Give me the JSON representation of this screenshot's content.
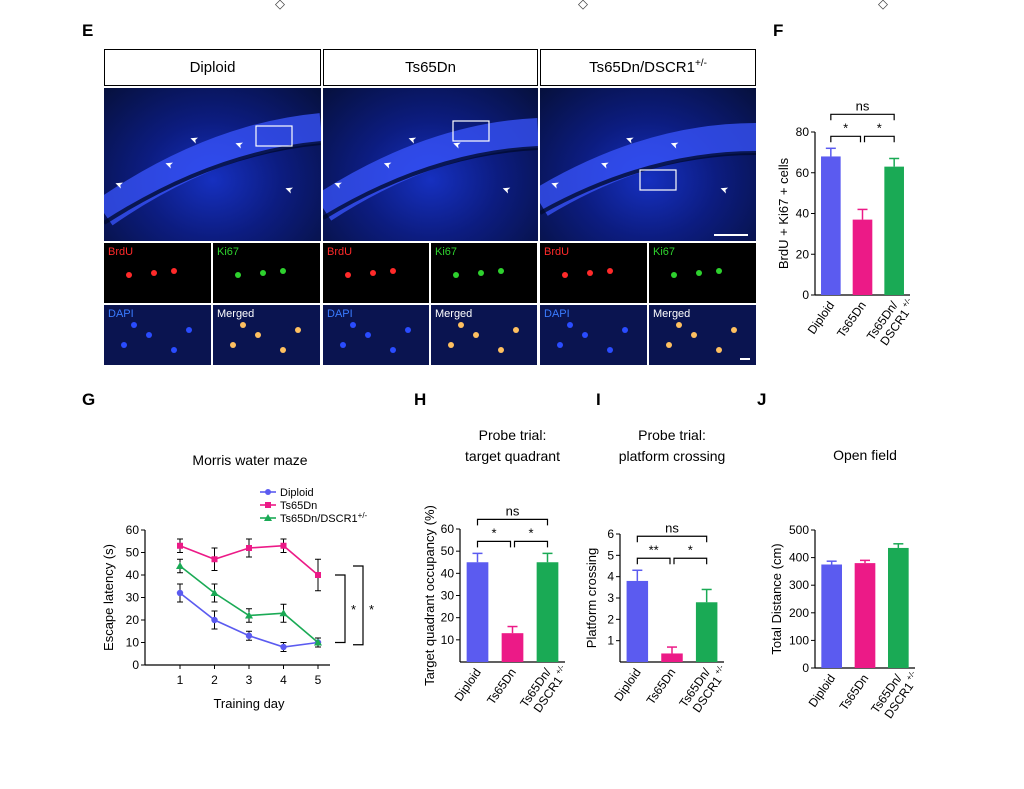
{
  "colors": {
    "diploid": "#5b5bf0",
    "ts65dn": "#ec1a87",
    "rescue": "#1aaa55",
    "brdu": "#ff2a2a",
    "ki67": "#2ed12e",
    "dapi": "#3a7bff",
    "merged": "#ffffff"
  },
  "panel_E": {
    "letter": "E",
    "headers": [
      "Diploid",
      "Ts65Dn",
      "Ts65Dn/DSCR1"
    ],
    "header_superscript": "+/-",
    "sub_labels": {
      "brdu": "BrdU",
      "ki67": "Ki67",
      "dapi": "DAPI",
      "merged": "Merged"
    }
  },
  "panel_F": {
    "letter": "F"
  },
  "panel_G": {
    "letter": "G"
  },
  "panel_H": {
    "letter": "H"
  },
  "panel_I": {
    "letter": "I"
  },
  "panel_J": {
    "letter": "J"
  },
  "chart_data": [
    {
      "id": "F",
      "type": "bar",
      "ylabel": "BrdU + Ki67 + cells",
      "ylim": [
        0,
        80
      ],
      "yticks": [
        0,
        20,
        40,
        60,
        80
      ],
      "categories": [
        "Diploid",
        "Ts65Dn",
        "Ts65Dn/\nDSCR1 +/-"
      ],
      "values": [
        68,
        37,
        63
      ],
      "errors": [
        4,
        5,
        4
      ],
      "significance": [
        "*",
        "*",
        "ns"
      ]
    },
    {
      "id": "G",
      "type": "line",
      "title": "Morris water maze",
      "xlabel": "Training day",
      "ylabel": "Escape latency (s)",
      "x": [
        1,
        2,
        3,
        4,
        5
      ],
      "ylim": [
        0,
        60
      ],
      "yticks": [
        0,
        10,
        20,
        30,
        40,
        50,
        60
      ],
      "series": [
        {
          "name": "Diploid",
          "values": [
            32,
            20,
            13,
            8,
            10
          ],
          "errors": [
            4,
            4,
            2,
            2,
            2
          ],
          "marker": "circle"
        },
        {
          "name": "Ts65Dn",
          "values": [
            53,
            47,
            52,
            53,
            40
          ],
          "errors": [
            3,
            5,
            4,
            3,
            7
          ],
          "marker": "square"
        },
        {
          "name": "Ts65Dn/DSCR1",
          "name_sup": "+/-",
          "values": [
            44,
            32,
            22,
            23,
            10
          ],
          "errors": [
            3,
            4,
            3,
            4,
            2
          ],
          "marker": "triangle"
        }
      ],
      "significance": [
        "*",
        "*"
      ]
    },
    {
      "id": "H",
      "type": "bar",
      "title": "Probe trial:\ntarget quadrant",
      "ylabel": "Target quadrant occupancy (%)",
      "ylim": [
        0,
        60
      ],
      "yticks": [
        10,
        20,
        30,
        40,
        50,
        60
      ],
      "categories": [
        "Diploid",
        "Ts65Dn",
        "Ts65Dn/\nDSCR1 +/-"
      ],
      "values": [
        45,
        13,
        45
      ],
      "errors": [
        4,
        3,
        4
      ],
      "significance": [
        "*",
        "*",
        "ns"
      ]
    },
    {
      "id": "I",
      "type": "bar",
      "title": "Probe trial:\nplatform crossing",
      "ylabel": "Platform crossing",
      "ylim": [
        0,
        6
      ],
      "yticks": [
        1,
        2,
        3,
        4,
        5,
        6
      ],
      "categories": [
        "Diploid",
        "Ts65Dn",
        "Ts65Dn/\nDSCR1 +/-"
      ],
      "values": [
        3.8,
        0.4,
        2.8
      ],
      "errors": [
        0.5,
        0.3,
        0.6
      ],
      "significance": [
        "**",
        "*",
        "ns"
      ]
    },
    {
      "id": "J",
      "type": "bar",
      "title": "Open field",
      "ylabel": "Total Distance (cm)",
      "ylim": [
        0,
        500
      ],
      "yticks": [
        0,
        100,
        200,
        300,
        400,
        500
      ],
      "categories": [
        "Diploid",
        "Ts65Dn",
        "Ts65Dn/\nDSCR1 +/-"
      ],
      "values": [
        375,
        380,
        435
      ],
      "errors": [
        12,
        10,
        15
      ],
      "significance": []
    }
  ]
}
